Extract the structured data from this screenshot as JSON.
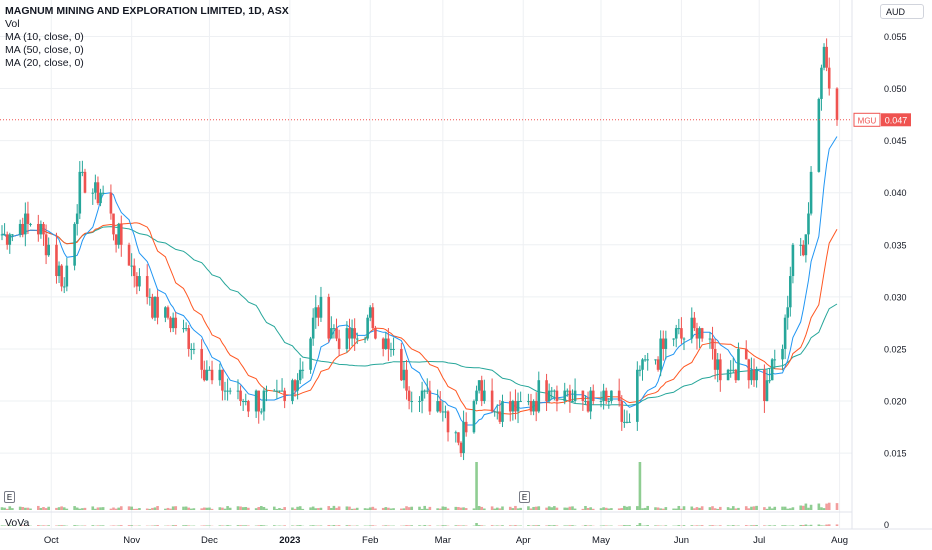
{
  "legend": {
    "title": "MAGNUM MINING AND EXPLORATION LIMITED, 1D, ASX",
    "vol": "Vol",
    "ma1": "MA (10, close, 0)",
    "ma2": "MA (50, close, 0)",
    "ma3": "MA (20, close, 0)"
  },
  "currency": "AUD",
  "lower_pane": {
    "label": "VoVa",
    "zero_label": "0"
  },
  "events": {
    "e1": "E",
    "e2": "E"
  },
  "price_label": {
    "symbol": "MGU",
    "value": "0.047"
  },
  "colors": {
    "up": "#26a69a",
    "down": "#ef5350",
    "vol_up": "#7bc47f",
    "vol_down": "#f08c8c",
    "ma10": "#2196f3",
    "ma20": "#ff5722",
    "ma50": "#26a69a",
    "grid": "#eef0f3",
    "price_line": "#ef5350"
  },
  "chart_data": {
    "type": "candlestick",
    "title": "MAGNUM MINING AND EXPLORATION LIMITED, 1D, ASX",
    "y_axis": {
      "ylim": [
        0.0105,
        0.0585
      ],
      "ticks": [
        "0.015",
        "0.020",
        "0.025",
        "0.030",
        "0.035",
        "0.040",
        "0.045",
        "0.050",
        "0.055"
      ]
    },
    "x_axis": {
      "ticks": [
        "Oct",
        "Nov",
        "Dec",
        "2023",
        "Feb",
        "Mar",
        "Apr",
        "May",
        "Jun",
        "Jul",
        "Aug"
      ]
    },
    "last_price": 0.047,
    "anchors": [
      {
        "date": "2022-09-12",
        "price": 0.036
      },
      {
        "date": "2022-09-26",
        "price": 0.037
      },
      {
        "date": "2022-10-06",
        "price": 0.031
      },
      {
        "date": "2022-10-12",
        "price": 0.041
      },
      {
        "date": "2022-10-20",
        "price": 0.04
      },
      {
        "date": "2022-10-28",
        "price": 0.035
      },
      {
        "date": "2022-11-10",
        "price": 0.029
      },
      {
        "date": "2022-11-24",
        "price": 0.026
      },
      {
        "date": "2022-12-02",
        "price": 0.022
      },
      {
        "date": "2022-12-16",
        "price": 0.02
      },
      {
        "date": "2022-12-30",
        "price": 0.02
      },
      {
        "date": "2023-01-06",
        "price": 0.024
      },
      {
        "date": "2023-01-12",
        "price": 0.029
      },
      {
        "date": "2023-01-20",
        "price": 0.026
      },
      {
        "date": "2023-01-27",
        "price": 0.026
      },
      {
        "date": "2023-02-02",
        "price": 0.028
      },
      {
        "date": "2023-02-10",
        "price": 0.024
      },
      {
        "date": "2023-02-17",
        "price": 0.021
      },
      {
        "date": "2023-02-28",
        "price": 0.02
      },
      {
        "date": "2023-03-08",
        "price": 0.016
      },
      {
        "date": "2023-03-14",
        "price": 0.022
      },
      {
        "date": "2023-03-22",
        "price": 0.019
      },
      {
        "date": "2023-03-31",
        "price": 0.019
      },
      {
        "date": "2023-04-12",
        "price": 0.022
      },
      {
        "date": "2023-04-21",
        "price": 0.02
      },
      {
        "date": "2023-05-05",
        "price": 0.02
      },
      {
        "date": "2023-05-12",
        "price": 0.017
      },
      {
        "date": "2023-05-16",
        "price": 0.023
      },
      {
        "date": "2023-05-30",
        "price": 0.026
      },
      {
        "date": "2023-06-08",
        "price": 0.027
      },
      {
        "date": "2023-06-16",
        "price": 0.023
      },
      {
        "date": "2023-06-26",
        "price": 0.024
      },
      {
        "date": "2023-07-03",
        "price": 0.021
      },
      {
        "date": "2023-07-10",
        "price": 0.025
      },
      {
        "date": "2023-07-14",
        "price": 0.035
      },
      {
        "date": "2023-07-18",
        "price": 0.034
      },
      {
        "date": "2023-07-24",
        "price": 0.05
      },
      {
        "date": "2023-07-26",
        "price": 0.054
      },
      {
        "date": "2023-07-31",
        "price": 0.047
      }
    ],
    "volume_spikes": [
      {
        "date": "2023-03-14",
        "volume": 4
      },
      {
        "date": "2023-05-16",
        "volume": 10
      }
    ]
  }
}
